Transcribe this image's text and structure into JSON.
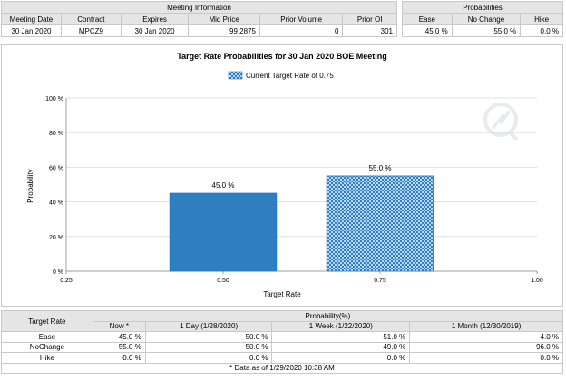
{
  "meeting_info": {
    "title": "Meeting Information",
    "headers": [
      "Meeting Date",
      "Contract",
      "Expires",
      "Mid Price",
      "Prior Volume",
      "Prior OI"
    ],
    "row": [
      "30 Jan 2020",
      "MPCZ9",
      "30 Jan 2020",
      "99.2875",
      "0",
      "301"
    ]
  },
  "probabilities": {
    "title": "Probabilities",
    "headers": [
      "Ease",
      "No Change",
      "Hike"
    ],
    "row": [
      "45.0 %",
      "55.0 %",
      "0.0 %"
    ]
  },
  "chart_data": {
    "type": "bar",
    "title": "Target Rate Probabilities for 30 Jan 2020 BOE Meeting",
    "legend": "Current Target Rate of 0.75",
    "xlabel": "Target Rate",
    "ylabel": "Probability",
    "xlim": [
      0.25,
      1.0
    ],
    "xticks": [
      "0.25",
      "0.50",
      "0.75",
      "1.00"
    ],
    "ylim": [
      0,
      100
    ],
    "yticks": [
      "0 %",
      "20 %",
      "40 %",
      "60 %",
      "80 %",
      "100 %"
    ],
    "x": [
      0.5,
      0.75
    ],
    "values": [
      45.0,
      55.0
    ],
    "bar_labels": [
      "45.0 %",
      "55.0 %"
    ],
    "bar_styles": [
      "solid",
      "hatched"
    ],
    "colors": {
      "bar": "#2e7fc1",
      "hatch_fill": "#1f78c8",
      "grid": "#d9d9d9"
    },
    "grid": true,
    "legend_position": "top-center"
  },
  "history": {
    "row_header": "Target Rate",
    "group_header": "Probability(%)",
    "columns": [
      "Now *",
      "1 Day (1/28/2020)",
      "1 Week (1/22/2020)",
      "1 Month (12/30/2019)"
    ],
    "rows": [
      {
        "label": "Ease",
        "values": [
          "45.0 %",
          "50.0 %",
          "51.0 %",
          "4.0 %"
        ]
      },
      {
        "label": "NoChange",
        "values": [
          "55.0 %",
          "50.0 %",
          "49.0 %",
          "96.0 %"
        ]
      },
      {
        "label": "Hike",
        "values": [
          "0.0 %",
          "0.0 %",
          "0.0 %",
          "0.0 %"
        ]
      }
    ],
    "footnote": "* Data as of 1/29/2020 10:38 AM"
  }
}
